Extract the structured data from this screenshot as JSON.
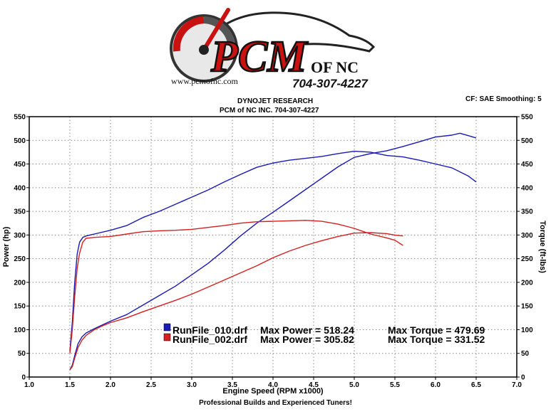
{
  "logo": {
    "main_text": "PCM",
    "suffix_text": "OF NC",
    "phone": "704-307-4227",
    "website": "www.pcmofnc.com"
  },
  "header": {
    "company": "DYNOJET RESEARCH",
    "shop": "PCM of NC INC. 704-307-4227",
    "correction": "CF: SAE  Smoothing: 5"
  },
  "footer": {
    "tagline": "Professional Builds and Experienced Tuners!"
  },
  "colors": {
    "run_010": "#1a1ab4",
    "run_002": "#d42020",
    "grid": "#888888",
    "logo_red": "#cc1111"
  },
  "chart_data": {
    "type": "line",
    "xlabel": "Engine Speed (RPM x1000)",
    "ylabel_left": "Power (hp)",
    "ylabel_right": "Torque (ft-lbs)",
    "xlim": [
      1.0,
      7.0
    ],
    "ylim": [
      0,
      550
    ],
    "x_ticks": [
      "1.0",
      "1.5",
      "2.0",
      "2.5",
      "3.0",
      "3.5",
      "4.0",
      "4.5",
      "5.0",
      "5.5",
      "6.0",
      "6.5",
      "7.0"
    ],
    "y_ticks": [
      "0",
      "50",
      "100",
      "150",
      "200",
      "250",
      "300",
      "350",
      "400",
      "450",
      "500",
      "550"
    ],
    "grid": true,
    "legend": [
      {
        "run": "RunFile_010.drf",
        "max_power_label": "Max Power = 518.24",
        "max_torque_label": "Max Torque = 479.69",
        "color": "#1a1ab4"
      },
      {
        "run": "RunFile_002.drf",
        "max_power_label": "Max Power = 305.82",
        "max_torque_label": "Max Torque = 331.52",
        "color": "#d42020"
      }
    ],
    "series": [
      {
        "name": "RunFile_010.drf",
        "measure": "power",
        "color": "#1a1ab4",
        "x": [
          1.5,
          1.53,
          1.56,
          1.6,
          1.65,
          1.7,
          1.8,
          1.9,
          2.0,
          2.2,
          2.4,
          2.6,
          2.8,
          3.0,
          3.2,
          3.4,
          3.6,
          3.8,
          4.0,
          4.2,
          4.4,
          4.6,
          4.8,
          5.0,
          5.2,
          5.4,
          5.6,
          5.8,
          6.0,
          6.2,
          6.3,
          6.4,
          6.5
        ],
        "y": [
          15,
          25,
          45,
          70,
          85,
          93,
          102,
          110,
          118,
          132,
          152,
          172,
          192,
          216,
          240,
          268,
          298,
          325,
          348,
          372,
          396,
          420,
          444,
          464,
          472,
          478,
          487,
          497,
          507,
          511,
          515,
          510,
          505
        ]
      },
      {
        "name": "RunFile_010.drf",
        "measure": "torque",
        "color": "#1a1ab4",
        "x": [
          1.5,
          1.53,
          1.56,
          1.59,
          1.62,
          1.66,
          1.7,
          1.8,
          2.0,
          2.2,
          2.4,
          2.6,
          2.8,
          3.0,
          3.2,
          3.4,
          3.6,
          3.8,
          4.0,
          4.2,
          4.4,
          4.6,
          4.8,
          5.0,
          5.2,
          5.4,
          5.6,
          5.8,
          6.0,
          6.2,
          6.4,
          6.5
        ],
        "y": [
          55,
          115,
          200,
          260,
          285,
          295,
          298,
          302,
          310,
          320,
          337,
          350,
          365,
          380,
          395,
          412,
          428,
          443,
          452,
          458,
          462,
          466,
          472,
          477,
          475,
          468,
          465,
          458,
          450,
          442,
          425,
          412
        ]
      },
      {
        "name": "RunFile_002.drf",
        "measure": "power",
        "color": "#d42020",
        "x": [
          1.5,
          1.53,
          1.56,
          1.6,
          1.65,
          1.7,
          1.8,
          1.9,
          2.0,
          2.2,
          2.4,
          2.6,
          2.8,
          3.0,
          3.2,
          3.4,
          3.6,
          3.8,
          4.0,
          4.2,
          4.4,
          4.6,
          4.8,
          5.0,
          5.2,
          5.4,
          5.5,
          5.6
        ],
        "y": [
          15,
          22,
          40,
          62,
          78,
          88,
          100,
          108,
          115,
          125,
          138,
          150,
          162,
          175,
          190,
          205,
          220,
          235,
          252,
          266,
          278,
          288,
          297,
          304,
          305,
          303,
          300,
          298
        ]
      },
      {
        "name": "RunFile_002.drf",
        "measure": "torque",
        "color": "#d42020",
        "x": [
          1.5,
          1.53,
          1.56,
          1.59,
          1.62,
          1.66,
          1.7,
          1.8,
          2.0,
          2.2,
          2.4,
          2.6,
          2.8,
          3.0,
          3.2,
          3.4,
          3.6,
          3.8,
          4.0,
          4.2,
          4.4,
          4.6,
          4.8,
          5.0,
          5.2,
          5.4,
          5.5,
          5.6
        ],
        "y": [
          50,
          100,
          170,
          230,
          262,
          285,
          293,
          295,
          297,
          302,
          307,
          309,
          310,
          312,
          316,
          320,
          325,
          328,
          329,
          330,
          331,
          329,
          323,
          314,
          302,
          294,
          289,
          278
        ]
      }
    ]
  }
}
